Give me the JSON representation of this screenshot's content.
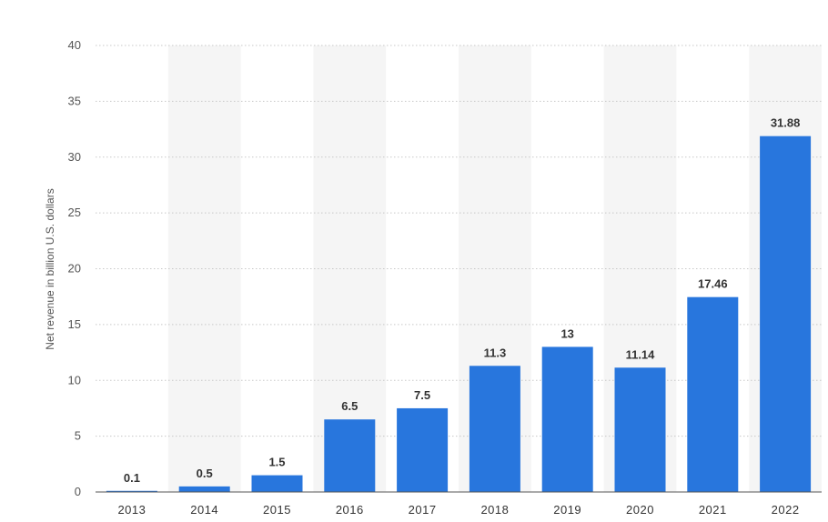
{
  "chart_data": {
    "type": "bar",
    "title": "",
    "xlabel": "",
    "ylabel": "Net revenue in billion U.S. dollars",
    "categories": [
      "2013",
      "2014",
      "2015",
      "2016",
      "2017",
      "2018",
      "2019",
      "2020",
      "2021",
      "2022"
    ],
    "values": [
      0.1,
      0.5,
      1.5,
      6.5,
      7.5,
      11.3,
      13,
      11.14,
      17.46,
      31.88
    ],
    "data_labels": [
      "0.1",
      "0.5",
      "1.5",
      "6.5",
      "7.5",
      "11.3",
      "13",
      "11.14",
      "17.46",
      "31.88"
    ],
    "ylim": [
      0,
      40
    ],
    "yticks": [
      "0",
      "5",
      "10",
      "15",
      "20",
      "25",
      "30",
      "35",
      "40"
    ],
    "grid": true,
    "legend": "none",
    "colors": {
      "bar": "#2876dd",
      "band": "#f5f5f5",
      "grid": "#c8c8c8"
    }
  }
}
